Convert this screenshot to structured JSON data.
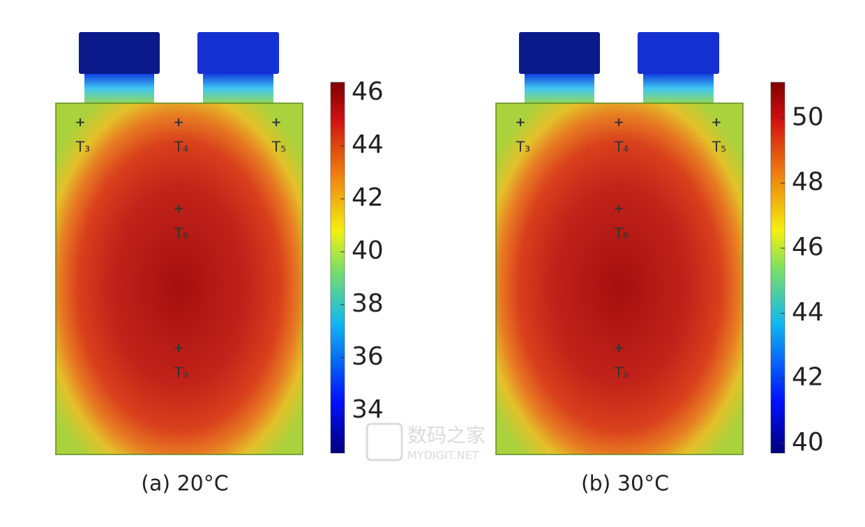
{
  "panels": [
    {
      "caption": "(a) 20°C",
      "points": [
        "T₃",
        "T₄",
        "T₅",
        "T₆",
        "T₉"
      ],
      "colorbar": {
        "lim": [
          32.4,
          46.4
        ],
        "ticks": [
          34,
          36,
          38,
          40,
          42,
          44,
          46
        ]
      }
    },
    {
      "caption": "(b) 30°C",
      "points": [
        "T₃",
        "T₄",
        "T₅",
        "T₆",
        "T₉"
      ],
      "colorbar": {
        "lim": [
          39.7,
          51.1
        ],
        "ticks": [
          40,
          42,
          44,
          46,
          48,
          50
        ]
      }
    }
  ],
  "watermark": {
    "title": "数码之家",
    "subtitle": "MYDIGIT.NET"
  }
}
